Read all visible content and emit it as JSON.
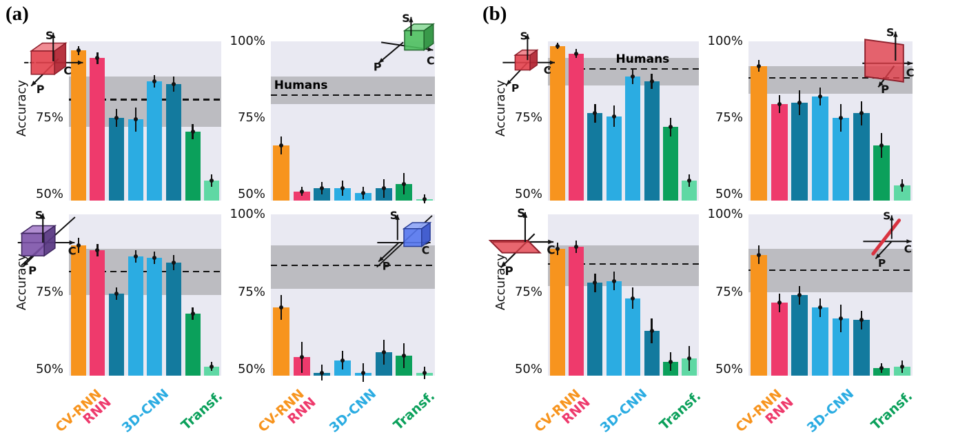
{
  "panels": [
    {
      "label": "(a)"
    },
    {
      "label": "(b)"
    }
  ],
  "axis": {
    "ylabel": "Accuracy",
    "ylim": [
      50,
      100
    ]
  },
  "humans_band_label": "Humans",
  "x_categories": [
    {
      "label": "CV-RNN",
      "color": "#F7941E"
    },
    {
      "label": "RNN",
      "color": "#EE3A6C"
    },
    {
      "label": "3D-CNN",
      "color": "#2BACE2"
    },
    {
      "label": "Transf.",
      "color": "#0BA05B"
    }
  ],
  "bar_colors": {
    "cv_rnn": "#F7941E",
    "rnn": "#EE3A6C",
    "cnn_dark": "#137A9E",
    "cnn_light": "#2BACE2",
    "transf": "#0BA05B",
    "transf_light": "#5FD8A4"
  },
  "icon_axis_labels": {
    "s": "S",
    "c": "C",
    "p": "P"
  },
  "chart_data": [
    {
      "id": "a-top-left",
      "type": "bar",
      "panel": "(a)",
      "icon": "red-cube",
      "ylabel_shown": true,
      "xlabels_shown": false,
      "yticks": [
        {
          "text": "75%",
          "value": 75
        },
        {
          "text": "50%",
          "value": 50
        }
      ],
      "humans_band": {
        "low": 72,
        "high": 88.5,
        "mean": 81,
        "label_shown": false
      },
      "bars": [
        {
          "model": "CV-RNN",
          "color": "cv_rnn",
          "value": 97,
          "err": 1.5
        },
        {
          "model": "RNN",
          "color": "rnn",
          "value": 94.5,
          "err": 2
        },
        {
          "model": "3D-CNN",
          "color": "cnn_dark",
          "value": 75,
          "err": 3
        },
        {
          "model": "3D-CNN",
          "color": "cnn_light",
          "value": 74.5,
          "err": 4
        },
        {
          "model": "3D-CNN",
          "color": "cnn_light",
          "value": 87,
          "err": 2
        },
        {
          "model": "3D-CNN",
          "color": "cnn_dark",
          "value": 86,
          "err": 2.5
        },
        {
          "model": "Transf.",
          "color": "transf",
          "value": 70.5,
          "err": 2.5
        },
        {
          "model": "Transf.",
          "color": "transf_light",
          "value": 54.5,
          "err": 2
        }
      ]
    },
    {
      "id": "a-top-right",
      "type": "bar",
      "panel": "(a)",
      "icon": "green-cube",
      "ylabel_shown": false,
      "xlabels_shown": false,
      "yticks": [
        {
          "text": "100%",
          "value": 100
        },
        {
          "text": "75%",
          "value": 75
        },
        {
          "text": "50%",
          "value": 50
        }
      ],
      "humans_band": {
        "low": 79.5,
        "high": 88.5,
        "mean": 82.5,
        "label_shown": true,
        "label_x": 0.02
      },
      "bars": [
        {
          "model": "CV-RNN",
          "color": "cv_rnn",
          "value": 66,
          "err": 3
        },
        {
          "model": "RNN",
          "color": "rnn",
          "value": 51,
          "err": 1.5
        },
        {
          "model": "3D-CNN",
          "color": "cnn_dark",
          "value": 52,
          "err": 2
        },
        {
          "model": "3D-CNN",
          "color": "cnn_light",
          "value": 52,
          "err": 2.5
        },
        {
          "model": "3D-CNN",
          "color": "cnn_light",
          "value": 50.5,
          "err": 2
        },
        {
          "model": "3D-CNN",
          "color": "cnn_dark",
          "value": 52,
          "err": 3
        },
        {
          "model": "Transf.",
          "color": "transf",
          "value": 53.5,
          "err": 3.5
        },
        {
          "model": "Transf.",
          "color": "transf_light",
          "value": 48.5,
          "err": 1.5
        }
      ]
    },
    {
      "id": "a-bottom-left",
      "type": "bar",
      "panel": "(a)",
      "icon": "purple-cube",
      "ylabel_shown": true,
      "xlabels_shown": true,
      "yticks": [
        {
          "text": "75%",
          "value": 75
        },
        {
          "text": "50%",
          "value": 50
        }
      ],
      "humans_band": {
        "low": 74,
        "high": 89,
        "mean": 81.5,
        "label_shown": false
      },
      "bars": [
        {
          "model": "CV-RNN",
          "color": "cv_rnn",
          "value": 90,
          "err": 2.5
        },
        {
          "model": "RNN",
          "color": "rnn",
          "value": 88.5,
          "err": 2
        },
        {
          "model": "3D-CNN",
          "color": "cnn_dark",
          "value": 74.5,
          "err": 2
        },
        {
          "model": "3D-CNN",
          "color": "cnn_light",
          "value": 86.5,
          "err": 2
        },
        {
          "model": "3D-CNN",
          "color": "cnn_light",
          "value": 86,
          "err": 2
        },
        {
          "model": "3D-CNN",
          "color": "cnn_dark",
          "value": 84.5,
          "err": 2.5
        },
        {
          "model": "Transf.",
          "color": "transf",
          "value": 68,
          "err": 2
        },
        {
          "model": "Transf.",
          "color": "transf_light",
          "value": 51,
          "err": 1.5
        }
      ]
    },
    {
      "id": "a-bottom-right",
      "type": "bar",
      "panel": "(a)",
      "icon": "blue-cube",
      "ylabel_shown": false,
      "xlabels_shown": true,
      "yticks": [
        {
          "text": "100%",
          "value": 100
        },
        {
          "text": "75%",
          "value": 75
        },
        {
          "text": "50%",
          "value": 50
        }
      ],
      "humans_band": {
        "low": 76,
        "high": 90,
        "mean": 83.5,
        "label_shown": false
      },
      "bars": [
        {
          "model": "CV-RNN",
          "color": "cv_rnn",
          "value": 70,
          "err": 4
        },
        {
          "model": "RNN",
          "color": "rnn",
          "value": 54,
          "err": 5
        },
        {
          "model": "3D-CNN",
          "color": "cnn_dark",
          "value": 49,
          "err": 2.5
        },
        {
          "model": "3D-CNN",
          "color": "cnn_light",
          "value": 53,
          "err": 3
        },
        {
          "model": "3D-CNN",
          "color": "cnn_light",
          "value": 49,
          "err": 3
        },
        {
          "model": "3D-CNN",
          "color": "cnn_dark",
          "value": 55.5,
          "err": 4
        },
        {
          "model": "Transf.",
          "color": "transf",
          "value": 54.5,
          "err": 4
        },
        {
          "model": "Transf.",
          "color": "transf_light",
          "value": 49,
          "err": 2
        }
      ]
    },
    {
      "id": "b-top-left",
      "type": "bar",
      "panel": "(b)",
      "icon": "red-cube-small",
      "ylabel_shown": true,
      "xlabels_shown": false,
      "yticks": [
        {
          "text": "75%",
          "value": 75
        },
        {
          "text": "50%",
          "value": 50
        }
      ],
      "humans_band": {
        "low": 85.5,
        "high": 94.5,
        "mean": 91,
        "label_shown": true,
        "label_x": 0.45
      },
      "bars": [
        {
          "model": "CV-RNN",
          "color": "cv_rnn",
          "value": 98.5,
          "err": 1
        },
        {
          "model": "RNN",
          "color": "rnn",
          "value": 96,
          "err": 1.5
        },
        {
          "model": "3D-CNN",
          "color": "cnn_dark",
          "value": 76.5,
          "err": 3
        },
        {
          "model": "3D-CNN",
          "color": "cnn_light",
          "value": 75.5,
          "err": 3.5
        },
        {
          "model": "3D-CNN",
          "color": "cnn_light",
          "value": 88.5,
          "err": 2.5
        },
        {
          "model": "3D-CNN",
          "color": "cnn_dark",
          "value": 87,
          "err": 2.5
        },
        {
          "model": "Transf.",
          "color": "transf",
          "value": 72,
          "err": 3
        },
        {
          "model": "Transf.",
          "color": "transf_light",
          "value": 54.5,
          "err": 2
        }
      ]
    },
    {
      "id": "b-top-right",
      "type": "bar",
      "panel": "(b)",
      "icon": "red-vertical-plane",
      "ylabel_shown": false,
      "xlabels_shown": false,
      "yticks": [
        {
          "text": "100%",
          "value": 100
        },
        {
          "text": "75%",
          "value": 75
        },
        {
          "text": "50%",
          "value": 50
        }
      ],
      "humans_band": {
        "low": 83,
        "high": 92,
        "mean": 88,
        "label_shown": false
      },
      "bars": [
        {
          "model": "CV-RNN",
          "color": "cv_rnn",
          "value": 92,
          "err": 2
        },
        {
          "model": "RNN",
          "color": "rnn",
          "value": 79.5,
          "err": 3
        },
        {
          "model": "3D-CNN",
          "color": "cnn_dark",
          "value": 80,
          "err": 4
        },
        {
          "model": "3D-CNN",
          "color": "cnn_light",
          "value": 82,
          "err": 3
        },
        {
          "model": "3D-CNN",
          "color": "cnn_light",
          "value": 75,
          "err": 4.5
        },
        {
          "model": "3D-CNN",
          "color": "cnn_dark",
          "value": 76.5,
          "err": 4
        },
        {
          "model": "Transf.",
          "color": "transf",
          "value": 66,
          "err": 4
        },
        {
          "model": "Transf.",
          "color": "transf_light",
          "value": 53,
          "err": 2
        }
      ]
    },
    {
      "id": "b-bottom-left",
      "type": "bar",
      "panel": "(b)",
      "icon": "red-horizontal-plane",
      "ylabel_shown": true,
      "xlabels_shown": true,
      "yticks": [
        {
          "text": "75%",
          "value": 75
        },
        {
          "text": "50%",
          "value": 50
        }
      ],
      "humans_band": {
        "low": 77,
        "high": 90,
        "mean": 84,
        "label_shown": false
      },
      "bars": [
        {
          "model": "CV-RNN",
          "color": "cv_rnn",
          "value": 89,
          "err": 2
        },
        {
          "model": "RNN",
          "color": "rnn",
          "value": 89.5,
          "err": 2
        },
        {
          "model": "3D-CNN",
          "color": "cnn_dark",
          "value": 78,
          "err": 3
        },
        {
          "model": "3D-CNN",
          "color": "cnn_light",
          "value": 78.5,
          "err": 3
        },
        {
          "model": "3D-CNN",
          "color": "cnn_light",
          "value": 73,
          "err": 3.5
        },
        {
          "model": "3D-CNN",
          "color": "cnn_dark",
          "value": 62.5,
          "err": 4
        },
        {
          "model": "Transf.",
          "color": "transf",
          "value": 52.5,
          "err": 3
        },
        {
          "model": "Transf.",
          "color": "transf_light",
          "value": 53.5,
          "err": 4
        }
      ]
    },
    {
      "id": "b-bottom-right",
      "type": "bar",
      "panel": "(b)",
      "icon": "red-rod",
      "ylabel_shown": false,
      "xlabels_shown": true,
      "yticks": [
        {
          "text": "100%",
          "value": 100
        },
        {
          "text": "75%",
          "value": 75
        },
        {
          "text": "50%",
          "value": 50
        }
      ],
      "humans_band": {
        "low": 75,
        "high": 89,
        "mean": 82,
        "label_shown": false
      },
      "bars": [
        {
          "model": "CV-RNN",
          "color": "cv_rnn",
          "value": 87,
          "err": 3
        },
        {
          "model": "RNN",
          "color": "rnn",
          "value": 71.5,
          "err": 3
        },
        {
          "model": "3D-CNN",
          "color": "cnn_dark",
          "value": 74,
          "err": 3
        },
        {
          "model": "3D-CNN",
          "color": "cnn_light",
          "value": 70,
          "err": 3
        },
        {
          "model": "3D-CNN",
          "color": "cnn_light",
          "value": 66.5,
          "err": 4.5
        },
        {
          "model": "3D-CNN",
          "color": "cnn_dark",
          "value": 66,
          "err": 3
        },
        {
          "model": "Transf.",
          "color": "transf",
          "value": 50.5,
          "err": 1.5
        },
        {
          "model": "Transf.",
          "color": "transf_light",
          "value": 51,
          "err": 2
        }
      ]
    }
  ]
}
